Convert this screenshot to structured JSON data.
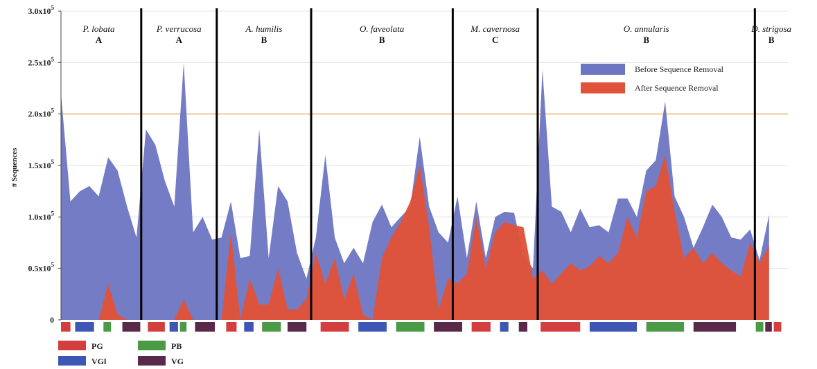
{
  "chart_data": {
    "type": "area",
    "ylabel": "# Sequences",
    "ylim": [
      0,
      300000
    ],
    "y_ticks": [
      {
        "value": 0,
        "label": "0"
      },
      {
        "value": 50000,
        "label": "0.5x10",
        "exp": "5"
      },
      {
        "value": 100000,
        "label": "1.0x10",
        "exp": "5"
      },
      {
        "value": 150000,
        "label": "1.5x10",
        "exp": "5"
      },
      {
        "value": 200000,
        "label": "2.0x10",
        "exp": "5"
      },
      {
        "value": 250000,
        "label": "2.5x10",
        "exp": "5"
      },
      {
        "value": 300000,
        "label": "3.0x10",
        "exp": "5"
      }
    ],
    "reference_line": 200000,
    "colors": {
      "before": "#6b75c2",
      "after": "#e0533a",
      "PG": "#d33f3f",
      "VGl": "#3f57b4",
      "PB": "#4a9a46",
      "VG": "#5a2848",
      "divider": "#000000",
      "gridline": "#d8a23a"
    },
    "x_range": [
      0,
      77
    ],
    "group_boundaries": [
      8.5,
      16.5,
      26.5,
      41.5,
      50.5,
      73.5
    ],
    "groups": [
      {
        "species": "P. lobata",
        "clade": "A"
      },
      {
        "species": "P. verrucosa",
        "clade": "A"
      },
      {
        "species": "A. humilis",
        "clade": "B"
      },
      {
        "species": "O. faveolata",
        "clade": "B"
      },
      {
        "species": "M. cavernosa",
        "clade": "C"
      },
      {
        "species": "O. annularis",
        "clade": "B"
      },
      {
        "species": "D. strigosa",
        "clade": "B"
      }
    ],
    "series": [
      {
        "name": "Before Sequence Removal",
        "values": [
          220000,
          115000,
          125000,
          130000,
          120000,
          158000,
          145000,
          110000,
          80000,
          185000,
          170000,
          135000,
          110000,
          250000,
          85000,
          100000,
          78000,
          80000,
          115000,
          60000,
          62000,
          185000,
          60000,
          130000,
          115000,
          65000,
          40000,
          80000,
          160000,
          80000,
          55000,
          70000,
          55000,
          95000,
          112000,
          90000,
          100000,
          110000,
          178000,
          110000,
          85000,
          75000,
          120000,
          60000,
          115000,
          60000,
          100000,
          105000,
          104000,
          62000,
          50000,
          243000,
          110000,
          105000,
          85000,
          108000,
          90000,
          92000,
          85000,
          118000,
          118000,
          100000,
          145000,
          155000,
          212000,
          120000,
          100000,
          70000,
          90000,
          112000,
          100000,
          80000,
          78000,
          88000,
          58000,
          102000
        ]
      },
      {
        "name": "After Sequence Removal",
        "values": [
          0,
          0,
          0,
          0,
          0,
          35000,
          5000,
          0,
          0,
          0,
          0,
          0,
          0,
          20000,
          0,
          0,
          0,
          0,
          85000,
          0,
          40000,
          15000,
          15000,
          50000,
          10000,
          10000,
          20000,
          65000,
          35000,
          60000,
          20000,
          45000,
          5000,
          0,
          60000,
          80000,
          95000,
          115000,
          150000,
          90000,
          10000,
          40000,
          35000,
          45000,
          100000,
          50000,
          85000,
          95000,
          92000,
          90000,
          40000,
          48000,
          35000,
          45000,
          55000,
          48000,
          52000,
          62000,
          55000,
          65000,
          100000,
          80000,
          125000,
          130000,
          160000,
          105000,
          60000,
          70000,
          55000,
          65000,
          55000,
          48000,
          42000,
          75000,
          55000,
          72000
        ]
      }
    ],
    "legend": [
      "Before Sequence Removal",
      "After Sequence Removal"
    ],
    "legend_position": "top-right",
    "sample_bars": [
      {
        "type": "PG",
        "x0": 0,
        "x1": 1
      },
      {
        "type": "VGl",
        "x0": 1.5,
        "x1": 3.5
      },
      {
        "type": "PB",
        "x0": 4.5,
        "x1": 5.3
      },
      {
        "type": "VG",
        "x0": 6.5,
        "x1": 8.4
      },
      {
        "type": "PG",
        "x0": 9.2,
        "x1": 11
      },
      {
        "type": "VGl",
        "x0": 11.5,
        "x1": 12.4
      },
      {
        "type": "PB",
        "x0": 12.6,
        "x1": 13.3
      },
      {
        "type": "VG",
        "x0": 14.2,
        "x1": 16.3
      },
      {
        "type": "PG",
        "x0": 17.5,
        "x1": 18.6
      },
      {
        "type": "VGl",
        "x0": 19.4,
        "x1": 20.4
      },
      {
        "type": "PB",
        "x0": 21.3,
        "x1": 23.3
      },
      {
        "type": "VG",
        "x0": 24,
        "x1": 26
      },
      {
        "type": "PG",
        "x0": 27.5,
        "x1": 30.5
      },
      {
        "type": "VGl",
        "x0": 31.5,
        "x1": 34.5
      },
      {
        "type": "PB",
        "x0": 35.5,
        "x1": 38.5
      },
      {
        "type": "VG",
        "x0": 39.5,
        "x1": 42.5
      },
      {
        "type": "PG",
        "x0": 43.5,
        "x1": 45.5
      },
      {
        "type": "VGl",
        "x0": 46.5,
        "x1": 47.4
      },
      {
        "type": "VG",
        "x0": 48.5,
        "x1": 49.4
      },
      {
        "type": "PG",
        "x0": 50.8,
        "x1": 55
      },
      {
        "type": "VGl",
        "x0": 56,
        "x1": 61
      },
      {
        "type": "PB",
        "x0": 62,
        "x1": 66
      },
      {
        "type": "VG",
        "x0": 67,
        "x1": 71.5
      },
      {
        "type": "PB",
        "x0": 73.6,
        "x1": 74.4
      },
      {
        "type": "VG",
        "x0": 74.6,
        "x1": 75.3
      },
      {
        "type": "PG",
        "x0": 75.5,
        "x1": 76.3
      }
    ],
    "sample_legend": [
      {
        "type": "PG",
        "label": "PG"
      },
      {
        "type": "PB",
        "label": "PB"
      },
      {
        "type": "VGl",
        "label": "VGl"
      },
      {
        "type": "VG",
        "label": "VG"
      }
    ]
  }
}
